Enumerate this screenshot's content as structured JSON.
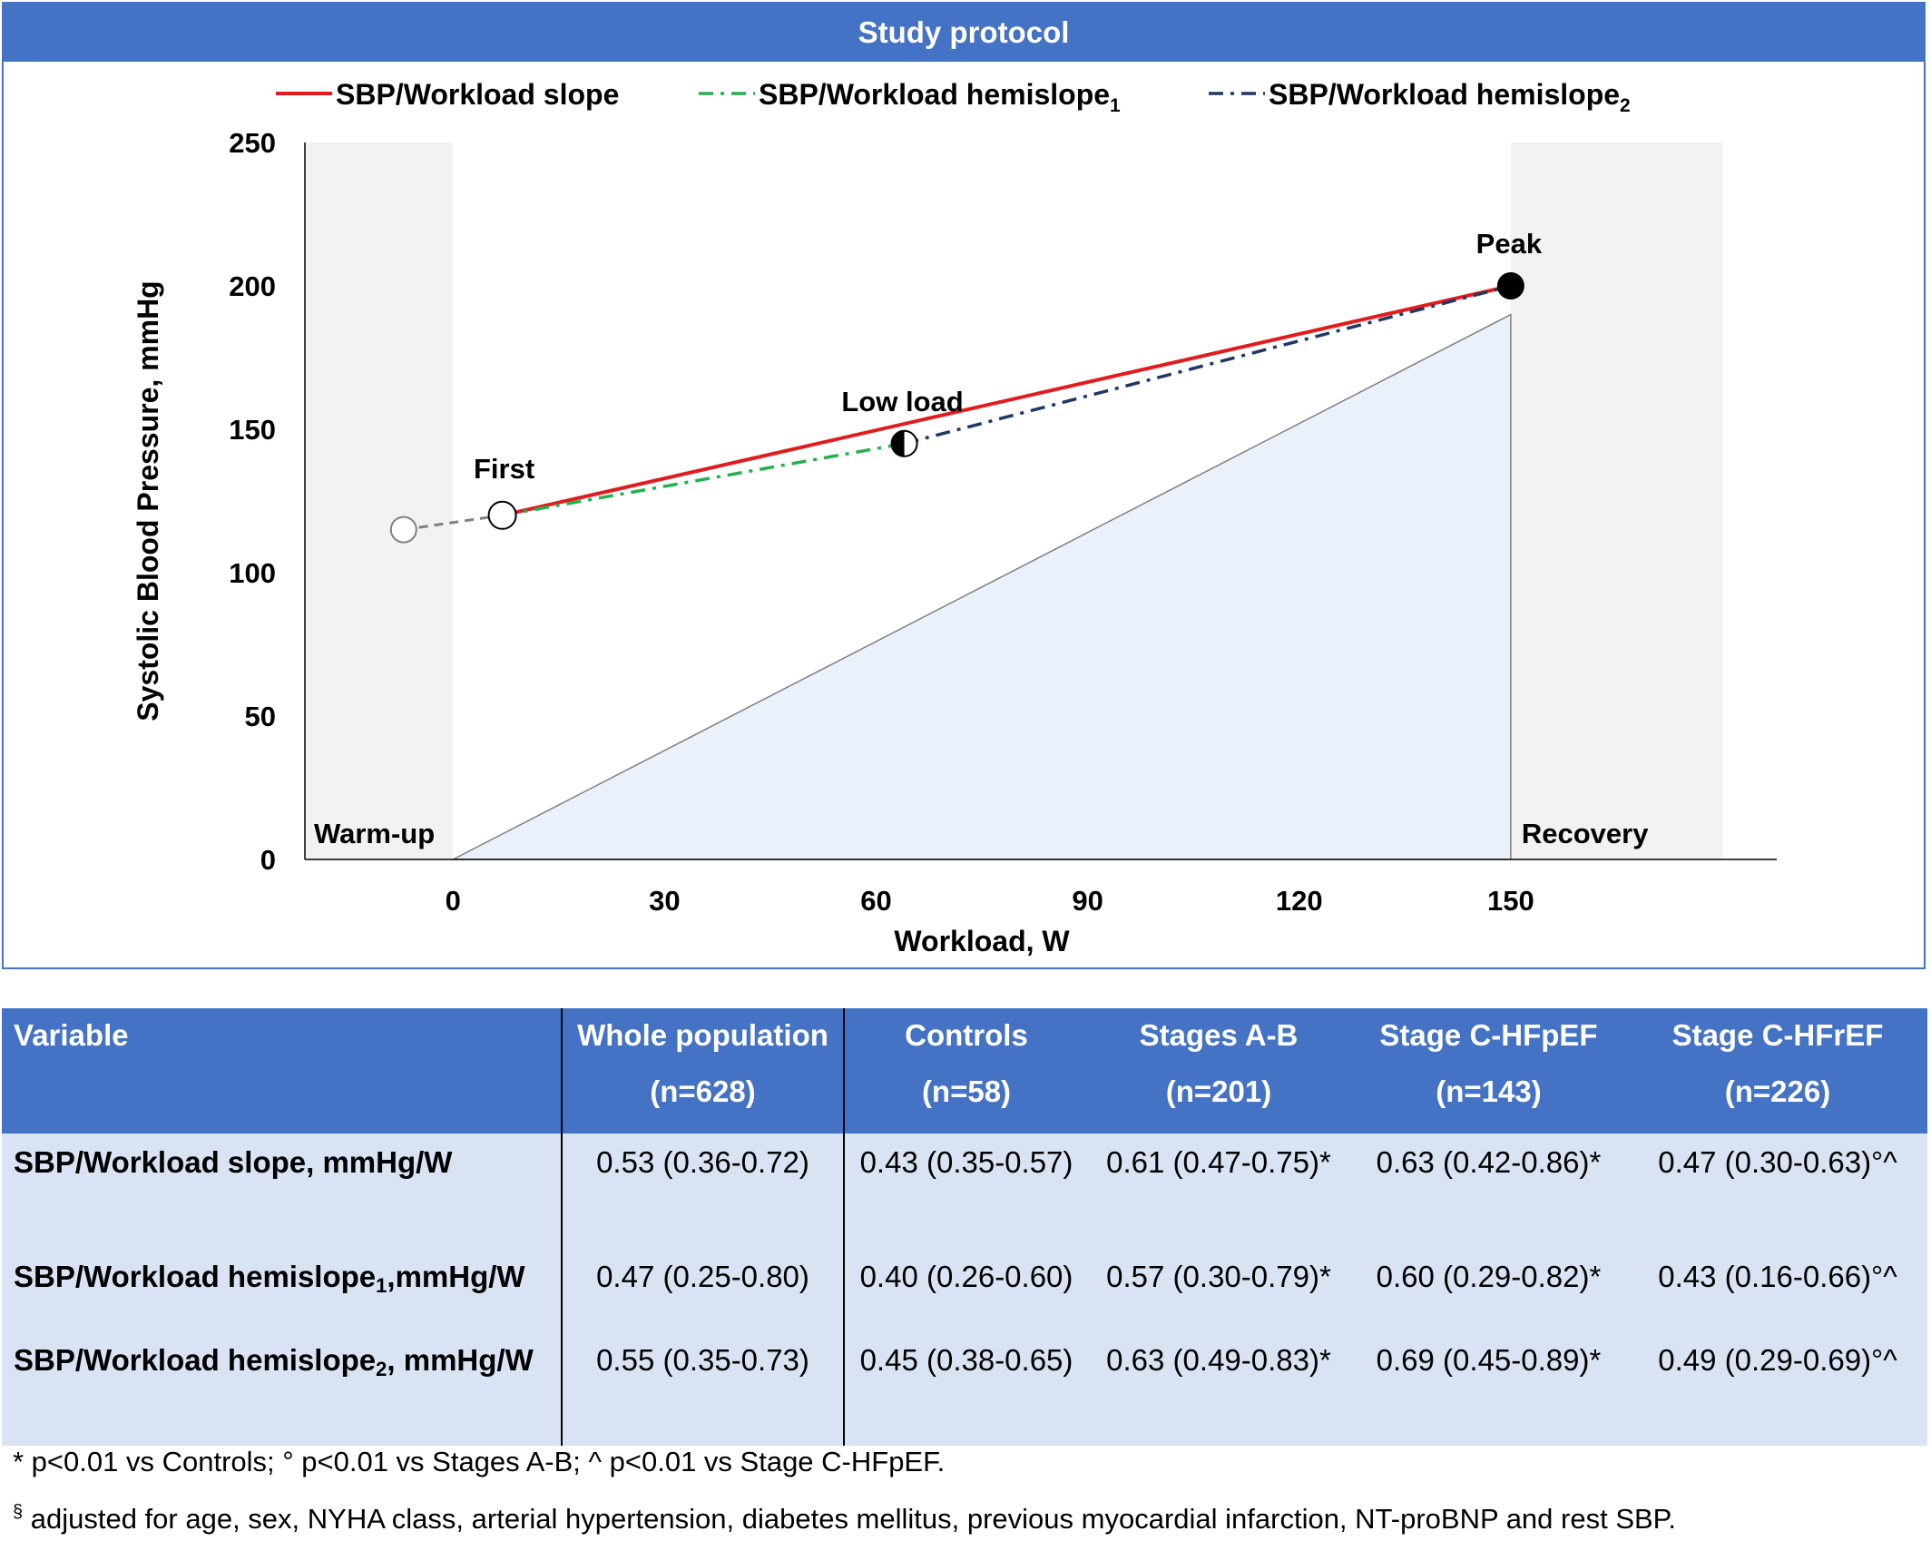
{
  "banner": {
    "title": "Study protocol"
  },
  "chart_data": {
    "type": "line",
    "xlabel": "Workload, W",
    "ylabel": "Systolic Blood Pressure, mmHg",
    "xticks": [
      0,
      30,
      60,
      90,
      120,
      150
    ],
    "yticks": [
      0,
      50,
      100,
      150,
      200,
      250
    ],
    "xlim": [
      -21,
      180
    ],
    "ylim": [
      0,
      250
    ],
    "phase_labels": {
      "warmup": "Warm-up",
      "recovery": "Recovery"
    },
    "legend": [
      {
        "label": "SBP/Workload slope",
        "sub": "",
        "style": "solid",
        "color": "#e41a1c"
      },
      {
        "label": "SBP/Workload hemislope",
        "sub": "1",
        "style": "dashdot",
        "color": "#22b14c"
      },
      {
        "label": "SBP/Workload hemislope",
        "sub": "2",
        "style": "dashdot",
        "color": "#1f3864"
      }
    ],
    "workload_ramp": {
      "x": [
        0,
        150,
        150
      ],
      "y": [
        0,
        0,
        190
      ]
    },
    "series": [
      {
        "name": "SBP/Workload slope",
        "x": [
          7,
          150
        ],
        "y": [
          120,
          200
        ]
      },
      {
        "name": "SBP/Workload hemislope1",
        "x": [
          7,
          64
        ],
        "y": [
          120,
          145
        ]
      },
      {
        "name": "SBP/Workload hemislope2",
        "x": [
          64,
          150
        ],
        "y": [
          145,
          200
        ]
      }
    ],
    "points": [
      {
        "label": "",
        "x": -7,
        "y": 115,
        "marker": "open-grey"
      },
      {
        "label": "First",
        "x": 7,
        "y": 120,
        "marker": "open"
      },
      {
        "label": "Low load",
        "x": 64,
        "y": 145,
        "marker": "half"
      },
      {
        "label": "Peak",
        "x": 150,
        "y": 200,
        "marker": "filled"
      }
    ]
  },
  "table": {
    "headers": [
      {
        "line1": "Variable",
        "line2": ""
      },
      {
        "line1": "Whole population",
        "line2": "(n=628)"
      },
      {
        "line1": "Controls",
        "line2": "(n=58)"
      },
      {
        "line1": "Stages A-B",
        "line2": "(n=201)"
      },
      {
        "line1": "Stage C-HFpEF",
        "line2": "(n=143)"
      },
      {
        "line1": "Stage C-HFrEF",
        "line2": "(n=226)"
      }
    ],
    "rows": [
      {
        "label_main": "SBP/Workload slope, mmHg/W",
        "label_sub": "",
        "label_tail": "",
        "values": [
          "0.53 (0.36-0.72)",
          "0.43 (0.35-0.57)",
          "0.61 (0.47-0.75)*",
          "0.63 (0.42-0.86)*",
          "0.47 (0.30-0.63)°^"
        ]
      },
      {
        "label_main": "SBP/Workload hemislope",
        "label_sub": "1",
        "label_tail": ",mmHg/W",
        "values": [
          "0.47 (0.25-0.80)",
          "0.40 (0.26-0.60)",
          "0.57 (0.30-0.79)*",
          "0.60 (0.29-0.82)*",
          "0.43 (0.16-0.66)°^"
        ]
      },
      {
        "label_main": "SBP/Workload hemislope",
        "label_sub": "2",
        "label_tail": ", mmHg/W",
        "values": [
          "0.55 (0.35-0.73)",
          "0.45 (0.38-0.65)",
          "0.63 (0.49-0.83)*",
          "0.69 (0.45-0.89)*",
          "0.49 (0.29-0.69)°^"
        ]
      }
    ]
  },
  "footnotes": {
    "line1": "* p<0.01 vs Controls; ° p<0.01 vs Stages A-B; ^ p<0.01 vs Stage C-HFpEF.",
    "line2_mark": "§",
    "line2": " adjusted for age, sex, NYHA class, arterial hypertension, diabetes mellitus, previous myocardial infarction, NT-proBNP and rest SBP."
  }
}
